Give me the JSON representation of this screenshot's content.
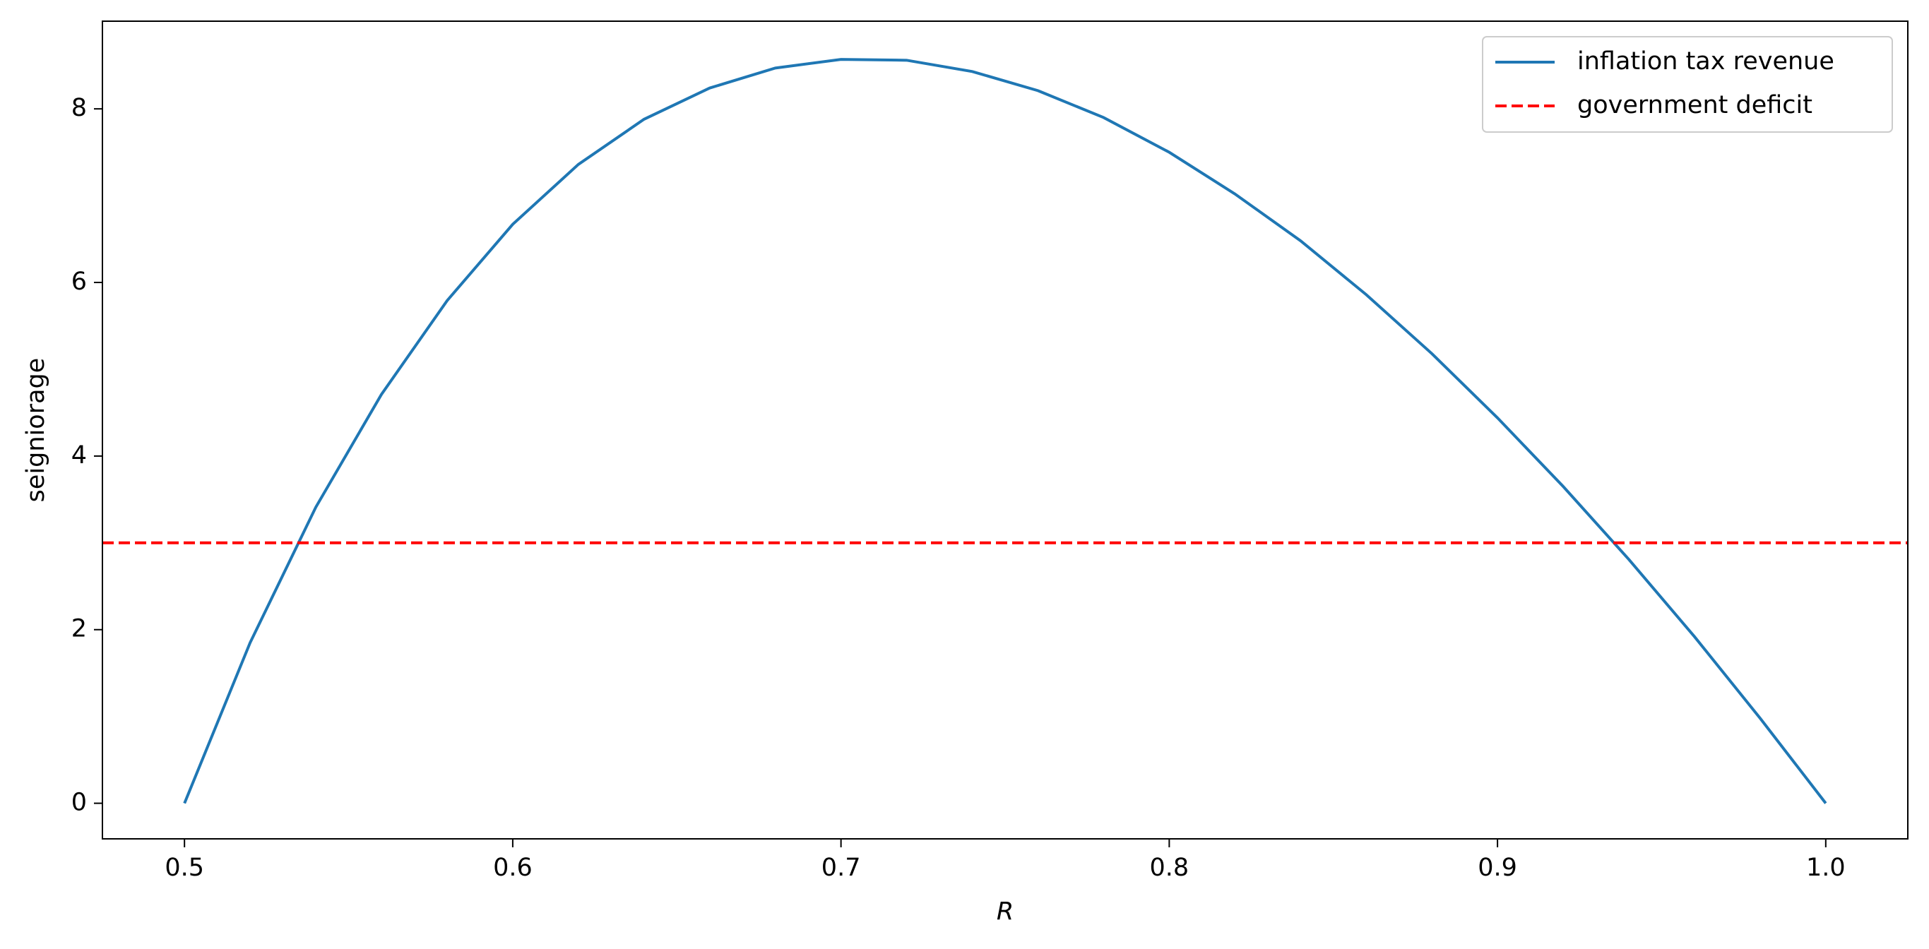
{
  "chart_data": {
    "type": "line",
    "xlabel": "R",
    "ylabel": "seigniorage",
    "x": [
      0.5,
      0.52,
      0.54,
      0.56,
      0.58,
      0.6,
      0.62,
      0.64,
      0.66,
      0.68,
      0.7,
      0.72,
      0.74,
      0.76,
      0.78,
      0.8,
      0.82,
      0.84,
      0.86,
      0.88,
      0.9,
      0.92,
      0.94,
      0.96,
      0.98,
      1.0
    ],
    "series": [
      {
        "name": "inflation tax revenue",
        "color": "#1f77b4",
        "values": [
          0,
          1.85,
          3.41,
          4.71,
          5.79,
          6.67,
          7.36,
          7.88,
          8.24,
          8.47,
          8.57,
          8.56,
          8.43,
          8.21,
          7.9,
          7.5,
          7.02,
          6.48,
          5.86,
          5.18,
          4.44,
          3.65,
          2.81,
          1.92,
          0.98,
          0
        ]
      },
      {
        "name": "government deficit",
        "color": "#ff0000",
        "dashed": true,
        "y": 3
      }
    ],
    "xlim": [
      0.475,
      1.025
    ],
    "xticks": [
      0.5,
      0.6,
      0.7,
      0.8,
      0.9,
      {
        "value": 1.0,
        "label": "1.0"
      }
    ],
    "ylim": [
      -0.41,
      9.01
    ],
    "yticks": [
      0,
      2,
      4,
      6,
      8
    ],
    "legend": "upper right"
  }
}
